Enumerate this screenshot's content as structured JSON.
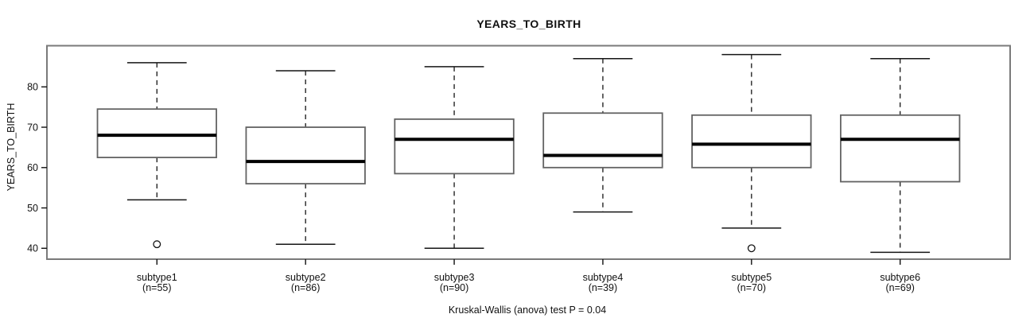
{
  "colors": {
    "frame": "#7a7a7a",
    "box_border": "#636363",
    "box_fill": "#ffffff",
    "median": "#000000",
    "whisker": "#141414",
    "text": "#111111"
  },
  "chart_data": {
    "type": "boxplot",
    "title": "YEARS_TO_BIRTH",
    "ylabel": "YEARS_TO_BIRTH",
    "caption": "Kruskal-Wallis (anova) test P = 0.04",
    "p_value": 0.04,
    "grid": false,
    "ylim": [
      37.3,
      90.2
    ],
    "yticks": [
      40,
      50,
      60,
      70,
      80
    ],
    "groups": [
      {
        "label": "subtype1",
        "n_label": "(n=55)",
        "n": 55,
        "low": 52,
        "q1": 62.5,
        "median": 68,
        "q3": 74.5,
        "high": 86,
        "outliers": [
          41
        ]
      },
      {
        "label": "subtype2",
        "n_label": "(n=86)",
        "n": 86,
        "low": 41,
        "q1": 56,
        "median": 61.5,
        "q3": 70,
        "high": 84,
        "outliers": []
      },
      {
        "label": "subtype3",
        "n_label": "(n=90)",
        "n": 90,
        "low": 40,
        "q1": 58.5,
        "median": 67,
        "q3": 72,
        "high": 85,
        "outliers": []
      },
      {
        "label": "subtype4",
        "n_label": "(n=39)",
        "n": 39,
        "low": 49,
        "q1": 60,
        "median": 63,
        "q3": 73.5,
        "high": 87,
        "outliers": []
      },
      {
        "label": "subtype5",
        "n_label": "(n=70)",
        "n": 70,
        "low": 45,
        "q1": 60,
        "median": 65.8,
        "q3": 73,
        "high": 88,
        "outliers": [
          40
        ]
      },
      {
        "label": "subtype6",
        "n_label": "(n=69)",
        "n": 69,
        "low": 39,
        "q1": 56.5,
        "median": 67,
        "q3": 73,
        "high": 87,
        "outliers": []
      }
    ]
  }
}
